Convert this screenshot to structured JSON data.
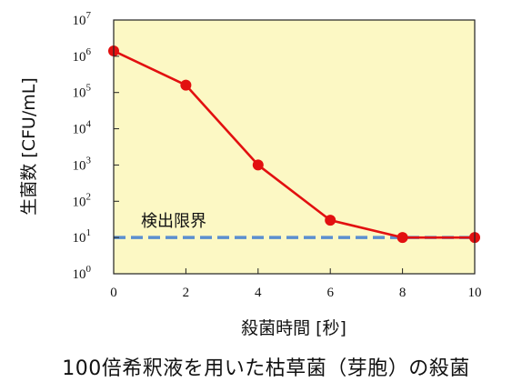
{
  "caption": "100倍希釈液を用いた枯草菌（芽胞）の殺菌",
  "colors": {
    "plot_background": "#fcf8c4",
    "series_line": "#e21010",
    "threshold_line": "#5b8fd0"
  },
  "chart_data": {
    "type": "line",
    "xlabel": "殺菌時間 [秒]",
    "ylabel": "生菌数 [CFU/mL]",
    "yscale": "log",
    "xlim": [
      0,
      10
    ],
    "ylim_exponent": [
      0,
      7
    ],
    "x_ticks": [
      0,
      2,
      4,
      6,
      8,
      10
    ],
    "y_ticks": [
      {
        "base": "10",
        "exp": "0"
      },
      {
        "base": "10",
        "exp": "1"
      },
      {
        "base": "10",
        "exp": "2"
      },
      {
        "base": "10",
        "exp": "3"
      },
      {
        "base": "10",
        "exp": "4"
      },
      {
        "base": "10",
        "exp": "5"
      },
      {
        "base": "10",
        "exp": "6"
      },
      {
        "base": "10",
        "exp": "7"
      }
    ],
    "grid": false,
    "series": [
      {
        "x": [
          0,
          2,
          4,
          6,
          8,
          10
        ],
        "y": [
          1400000,
          160000,
          1000,
          30,
          10,
          10
        ]
      }
    ],
    "threshold": {
      "label": "検出限界",
      "value": 10
    }
  }
}
